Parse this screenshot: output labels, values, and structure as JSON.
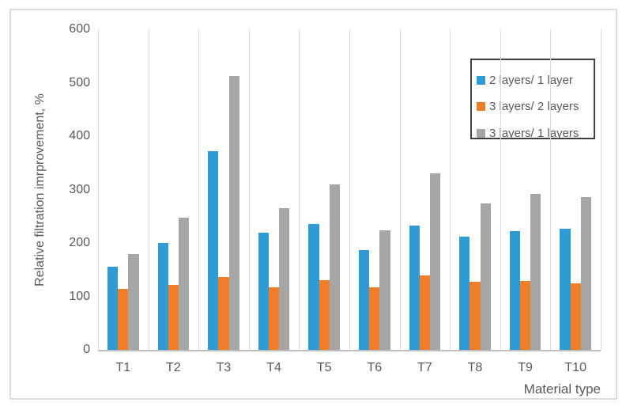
{
  "chart_data": {
    "type": "bar",
    "title": "",
    "categories": [
      "T1",
      "T2",
      "T3",
      "T4",
      "T5",
      "T6",
      "T7",
      "T8",
      "T9",
      "T10"
    ],
    "series": [
      {
        "name": "2 layers/ 1 layer",
        "color": "#2e9bd5",
        "values": [
          155,
          200,
          372,
          220,
          235,
          187,
          232,
          212,
          222,
          227
        ]
      },
      {
        "name": "3 layers/ 2 layers",
        "color": "#f07d28",
        "values": [
          114,
          122,
          137,
          117,
          130,
          117,
          140,
          127,
          129,
          125
        ]
      },
      {
        "name": "3 layers/ 1 layers",
        "color": "#a6a6a6",
        "values": [
          180,
          248,
          513,
          265,
          310,
          224,
          330,
          274,
          292,
          286
        ]
      }
    ],
    "xlabel": "Material type",
    "ylabel": "Relative filtration imrprovement, %",
    "ylim": [
      0,
      600
    ],
    "yticks": [
      0,
      100,
      200,
      300,
      400,
      500,
      600
    ],
    "grid": "vertical-category-boundaries-only",
    "legend_position": "inside-top-right-boxed"
  },
  "colors": {
    "text": "#595959",
    "gridline": "#d9d9d9",
    "axis_line": "#bfbfbf",
    "legend_border": "#3f3f3f",
    "figure_border": "#dcdcdc"
  }
}
